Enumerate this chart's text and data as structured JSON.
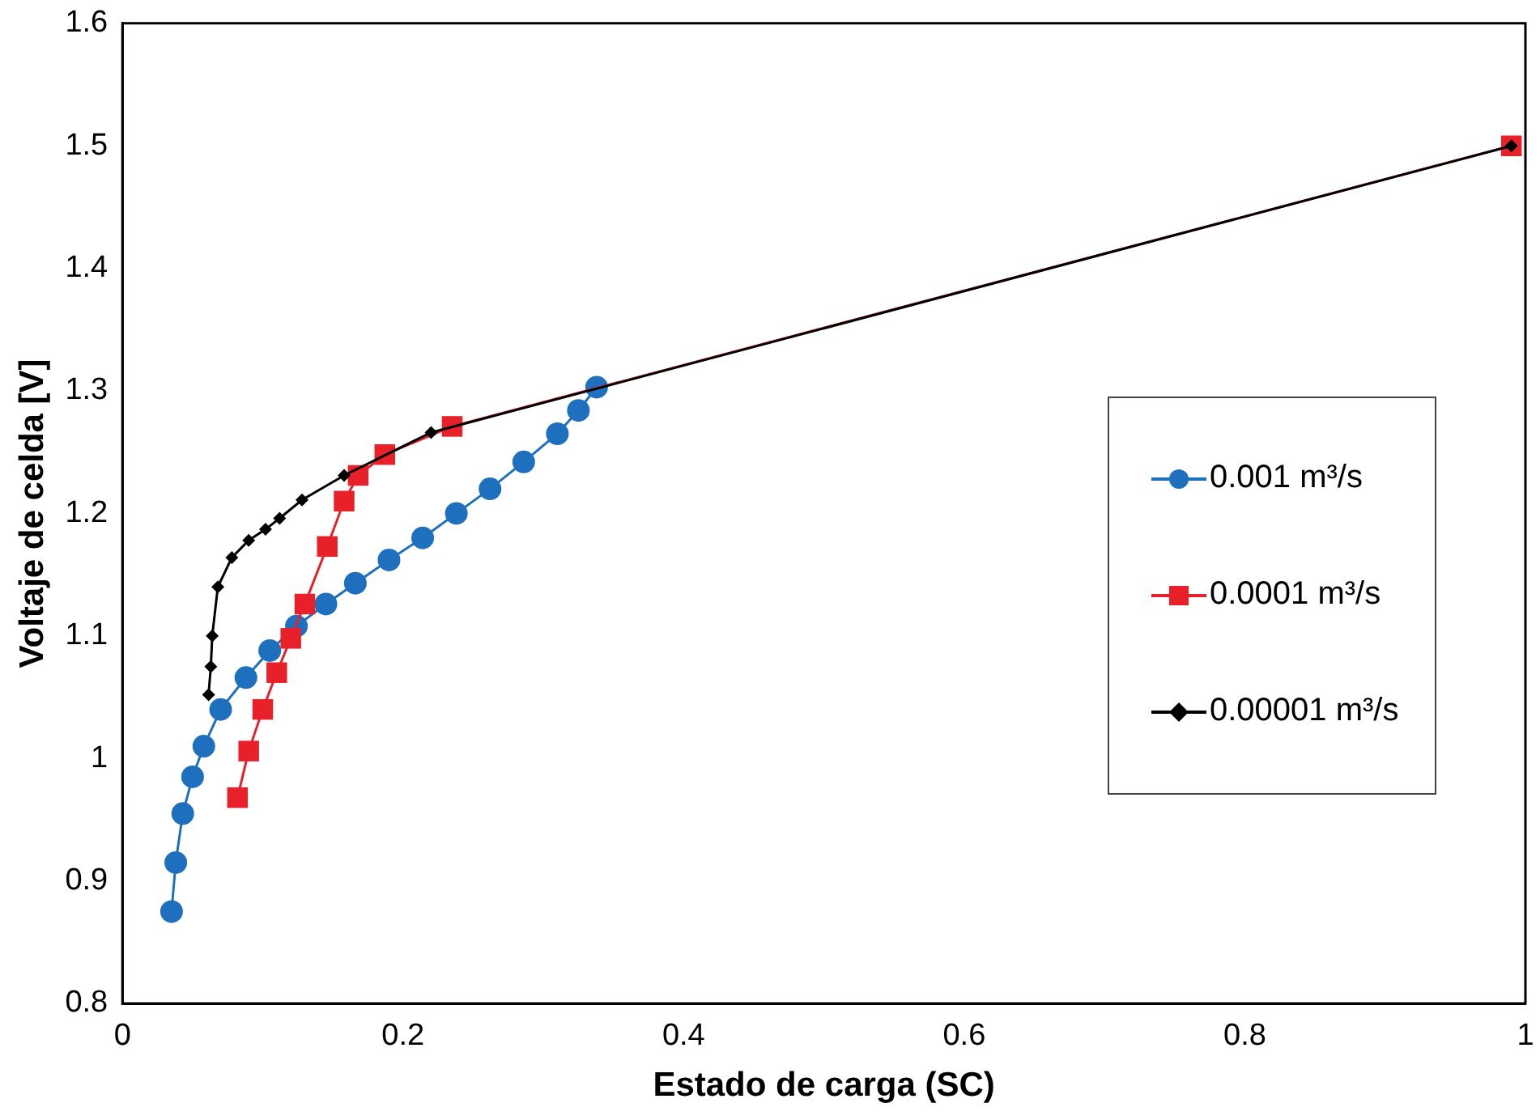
{
  "chart_data": {
    "type": "line",
    "xlabel": "Estado de carga (SC)",
    "ylabel": "Voltaje de celda [V]",
    "xlim": [
      0,
      1
    ],
    "xticks": [
      0,
      0.2,
      0.4,
      0.6,
      0.8,
      1
    ],
    "ylim": [
      0.8,
      1.6
    ],
    "yticks": [
      0.8,
      0.9,
      1,
      1.1,
      1.2,
      1.3,
      1.4,
      1.5,
      1.6
    ],
    "grid": false,
    "legend": "right",
    "series": [
      {
        "name": "0.001 m³/s",
        "color": "#1f6fbf",
        "marker": "circle",
        "x": [
          0.035,
          0.038,
          0.043,
          0.05,
          0.058,
          0.07,
          0.088,
          0.105,
          0.124,
          0.145,
          0.166,
          0.19,
          0.214,
          0.238,
          0.262,
          0.286,
          0.31,
          0.325,
          0.338
        ],
        "values": [
          0.875,
          0.915,
          0.955,
          0.985,
          1.01,
          1.04,
          1.066,
          1.088,
          1.108,
          1.126,
          1.143,
          1.162,
          1.18,
          1.2,
          1.22,
          1.242,
          1.265,
          1.284,
          1.303
        ]
      },
      {
        "name": "0.0001 m³/s",
        "color": "#e8202a",
        "marker": "square",
        "x": [
          0.082,
          0.09,
          0.1,
          0.11,
          0.12,
          0.13,
          0.146,
          0.158,
          0.168,
          0.187,
          0.235,
          0.99
        ],
        "values": [
          0.968,
          1.006,
          1.04,
          1.07,
          1.098,
          1.126,
          1.173,
          1.21,
          1.231,
          1.248,
          1.271,
          1.5
        ]
      },
      {
        "name": "0.00001 m³/s",
        "color": "#000000",
        "marker": "diamond",
        "x": [
          0.0614,
          0.063,
          0.064,
          0.068,
          0.078,
          0.09,
          0.102,
          0.112,
          0.128,
          0.158,
          0.22,
          0.99
        ],
        "values": [
          1.052,
          1.075,
          1.1,
          1.14,
          1.164,
          1.178,
          1.187,
          1.196,
          1.211,
          1.231,
          1.266,
          1.5
        ]
      }
    ]
  }
}
